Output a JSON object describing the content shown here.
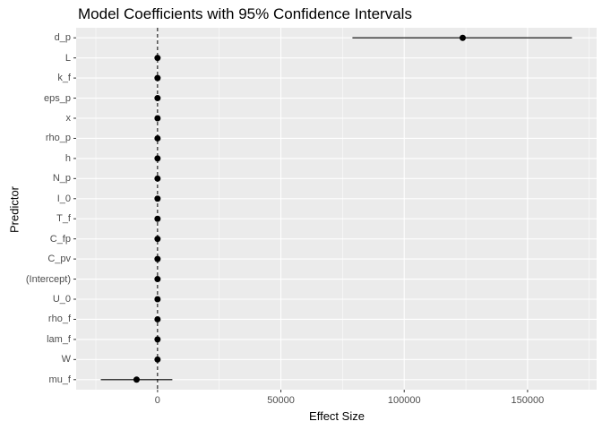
{
  "chart_data": {
    "type": "scatter",
    "title": "Model Coefficients with 95% Confidence Intervals",
    "xlabel": "Effect Size",
    "ylabel": "Predictor",
    "xlim": [
      -33000,
      178000
    ],
    "x_ticks": [
      0,
      50000,
      100000,
      150000
    ],
    "x_tick_labels": [
      "0",
      "50000",
      "100000",
      "150000"
    ],
    "reference_line": {
      "x": 0,
      "style": "dashed"
    },
    "grid": true,
    "legend": "none",
    "colors": {
      "panel": "#ebebeb",
      "grid": "#ffffff",
      "points": "#000000",
      "text": "#4d4d4d"
    },
    "predictors": [
      {
        "name": "d_p",
        "estimate": 123700,
        "ci_low": 79000,
        "ci_high": 168000
      },
      {
        "name": "L",
        "estimate": 0,
        "ci_low": 0,
        "ci_high": 0
      },
      {
        "name": "k_f",
        "estimate": 0,
        "ci_low": 0,
        "ci_high": 0
      },
      {
        "name": "eps_p",
        "estimate": 0,
        "ci_low": 0,
        "ci_high": 0
      },
      {
        "name": "x",
        "estimate": 0,
        "ci_low": 0,
        "ci_high": 0
      },
      {
        "name": "rho_p",
        "estimate": 0,
        "ci_low": 0,
        "ci_high": 0
      },
      {
        "name": "h",
        "estimate": 0,
        "ci_low": 0,
        "ci_high": 0
      },
      {
        "name": "N_p",
        "estimate": 0,
        "ci_low": 0,
        "ci_high": 0
      },
      {
        "name": "I_0",
        "estimate": 0,
        "ci_low": 0,
        "ci_high": 0
      },
      {
        "name": "T_f",
        "estimate": 0,
        "ci_low": 0,
        "ci_high": 0
      },
      {
        "name": "C_fp",
        "estimate": 0,
        "ci_low": 0,
        "ci_high": 0
      },
      {
        "name": "C_pv",
        "estimate": 0,
        "ci_low": 0,
        "ci_high": 0
      },
      {
        "name": "(Intercept)",
        "estimate": 0,
        "ci_low": 0,
        "ci_high": 0
      },
      {
        "name": "U_0",
        "estimate": 0,
        "ci_low": 0,
        "ci_high": 0
      },
      {
        "name": "rho_f",
        "estimate": 0,
        "ci_low": 0,
        "ci_high": 0
      },
      {
        "name": "lam_f",
        "estimate": 0,
        "ci_low": 0,
        "ci_high": 0
      },
      {
        "name": "W",
        "estimate": 0,
        "ci_low": 0,
        "ci_high": 0
      },
      {
        "name": "mu_f",
        "estimate": -8500,
        "ci_low": -23000,
        "ci_high": 6000
      }
    ]
  }
}
